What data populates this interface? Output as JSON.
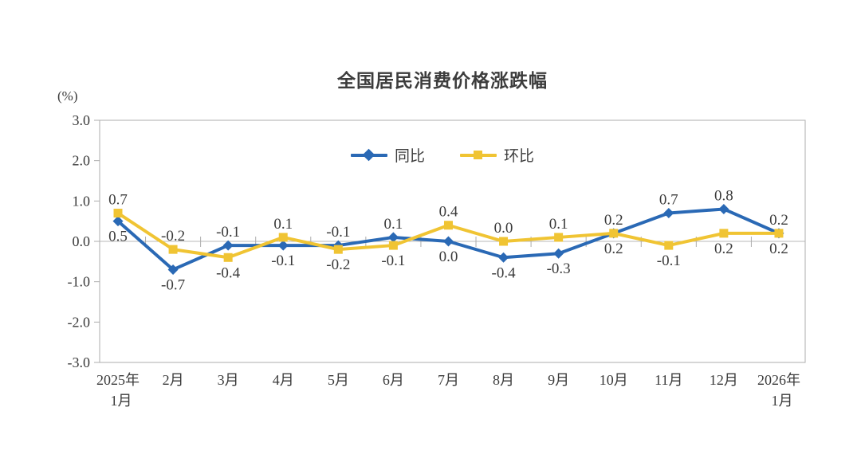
{
  "chart_data": {
    "type": "line",
    "title": "全国居民消费价格涨跌幅",
    "unit_label": "(%)",
    "legend_position": "top-center-inside",
    "grid": "zero-baseline-only",
    "ylim": [
      -3.0,
      3.0
    ],
    "y_ticks": [
      "3.0",
      "2.0",
      "1.0",
      "0.0",
      "-1.0",
      "-2.0",
      "-3.0"
    ],
    "categories": [
      [
        "2025年",
        "1月"
      ],
      [
        "2月"
      ],
      [
        "3月"
      ],
      [
        "4月"
      ],
      [
        "5月"
      ],
      [
        "6月"
      ],
      [
        "7月"
      ],
      [
        "8月"
      ],
      [
        "9月"
      ],
      [
        "10月"
      ],
      [
        "11月"
      ],
      [
        "12月"
      ],
      [
        "2026年",
        "1月"
      ]
    ],
    "series": [
      {
        "name": "同比",
        "color": "#2a69b5",
        "marker": "diamond",
        "values": [
          0.5,
          -0.7,
          -0.1,
          -0.1,
          -0.1,
          0.1,
          0.0,
          -0.4,
          -0.3,
          0.2,
          0.7,
          0.8,
          0.2
        ],
        "point_labels": [
          "0.5",
          "-0.7",
          "-0.1",
          "-0.1",
          "-0.1",
          "0.1",
          "0.0",
          "-0.4",
          "-0.3",
          "0.2",
          "0.7",
          "0.8",
          "0.2"
        ],
        "label_side": [
          "below",
          "below",
          "above",
          "below",
          "above",
          "above",
          "below",
          "below",
          "below",
          "below",
          "above",
          "above",
          "above"
        ]
      },
      {
        "name": "环比",
        "color": "#f0c433",
        "marker": "square",
        "values": [
          0.7,
          -0.2,
          -0.4,
          0.1,
          -0.2,
          -0.1,
          0.4,
          0.0,
          0.1,
          0.2,
          -0.1,
          0.2,
          0.2
        ],
        "point_labels": [
          "0.7",
          "-0.2",
          "-0.4",
          "0.1",
          "-0.2",
          "-0.1",
          "0.4",
          "0.0",
          "0.1",
          "0.2",
          "-0.1",
          "0.2",
          "0.2"
        ],
        "label_side": [
          "above",
          "above",
          "below",
          "above",
          "below",
          "below",
          "above",
          "above",
          "above",
          "above",
          "below",
          "below",
          "below"
        ]
      }
    ],
    "axis_color": "#adadad",
    "zero_line_color": "#b8b8b8",
    "text_color": "#3a3a3a"
  }
}
